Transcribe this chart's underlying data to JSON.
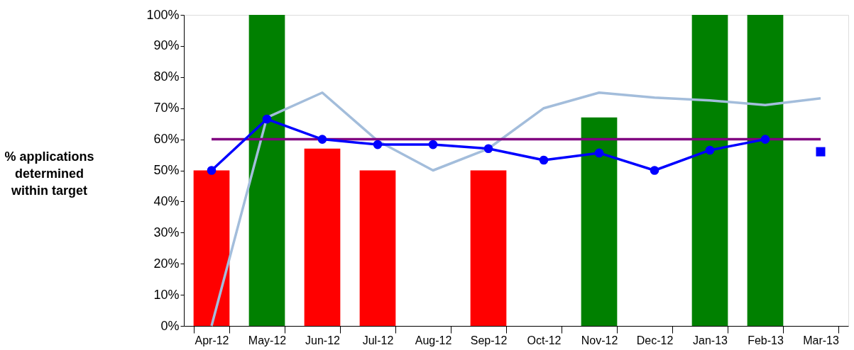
{
  "chart_data": {
    "type": "bar",
    "ylabel": "% applications determined within target",
    "categories": [
      "Apr-12",
      "May-12",
      "Jun-12",
      "Jul-12",
      "Aug-12",
      "Sep-12",
      "Oct-12",
      "Nov-12",
      "Dec-12",
      "Jan-13",
      "Feb-13",
      "Mar-13"
    ],
    "series": [
      {
        "colors": [
          "#ff0000",
          "#008000",
          "#ff0000",
          "#ff0000",
          null,
          "#ff0000",
          null,
          "#008000",
          null,
          "#008000",
          "#008000",
          null
        ],
        "values": [
          50,
          100,
          57,
          50,
          null,
          50,
          null,
          67,
          null,
          100,
          100,
          null
        ]
      },
      {
        "type": "line",
        "color": "#a3bddb",
        "marker": "none",
        "values": [
          0,
          67,
          75,
          59.5,
          50,
          57,
          70,
          75,
          73.4,
          72.5,
          71,
          73.2
        ]
      },
      {
        "type": "line",
        "color": "#800080",
        "marker": "none",
        "values": [
          60,
          60,
          60,
          60,
          60,
          60,
          60,
          60,
          60,
          60,
          60,
          60
        ]
      },
      {
        "type": "line",
        "color": "#0000ff",
        "marker": "circle",
        "values": [
          50,
          66.5,
          60,
          58.3,
          58.3,
          57,
          53.3,
          55.6,
          50,
          56.5,
          60,
          null
        ]
      },
      {
        "type": "scatter",
        "color": "#0000ff",
        "marker": "square",
        "values": [
          null,
          null,
          null,
          null,
          null,
          null,
          null,
          null,
          null,
          null,
          null,
          56
        ]
      }
    ],
    "ylim": [
      0,
      100
    ],
    "yticks": [
      {
        "value": 0,
        "label": "0%"
      },
      {
        "value": 10,
        "label": "10%"
      },
      {
        "value": 20,
        "label": "20%"
      },
      {
        "value": 30,
        "label": "30%"
      },
      {
        "value": 40,
        "label": "40%"
      },
      {
        "value": 50,
        "label": "50%"
      },
      {
        "value": 60,
        "label": "60%"
      },
      {
        "value": 70,
        "label": "70%"
      },
      {
        "value": 80,
        "label": "80%"
      },
      {
        "value": 90,
        "label": "90%"
      },
      {
        "value": 100,
        "label": "100%"
      }
    ],
    "grid": false,
    "line_style": "solid"
  }
}
